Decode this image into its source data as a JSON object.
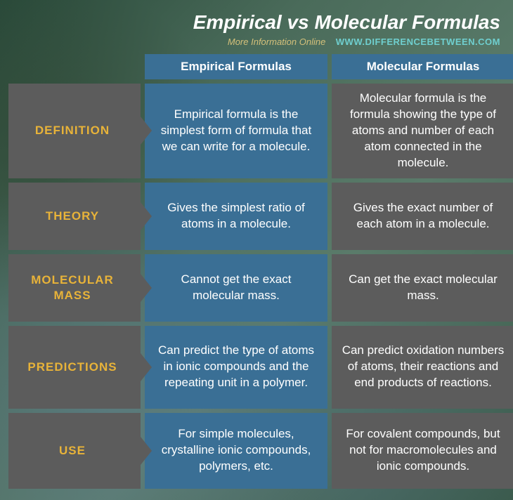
{
  "title": "Empirical vs Molecular Formulas",
  "subtitle": {
    "more": "More Information  Online",
    "url": "WWW.DIFFERENCEBETWEEN.COM"
  },
  "headers": {
    "empirical": "Empirical Formulas",
    "molecular": "Molecular Formulas"
  },
  "rows": [
    {
      "label": "DEFINITION",
      "empirical": "Empirical formula is the simplest form of formula that we can write for a molecule.",
      "molecular": "Molecular formula is the formula showing the type of atoms and number of each atom connected in the molecule."
    },
    {
      "label": "THEORY",
      "empirical": "Gives the simplest ratio of atoms in a molecule.",
      "molecular": "Gives the exact number of each atom in a molecule."
    },
    {
      "label": "MOLECULAR MASS",
      "empirical": "Cannot get the exact molecular mass.",
      "molecular": "Can get the exact molecular mass."
    },
    {
      "label": "PREDICTIONS",
      "empirical": "Can predict the type of atoms in ionic compounds and the repeating unit in a polymer.",
      "molecular": "Can predict oxidation numbers of atoms, their reactions and end products of reactions."
    },
    {
      "label": "USE",
      "empirical": "For simple molecules, crystalline ionic compounds, polymers, etc.",
      "molecular": "For covalent compounds, but not for macromolecules and ionic compounds."
    }
  ],
  "colors": {
    "empirical_bg": "#3a6f95",
    "molecular_bg": "#5c5c5c",
    "label_text": "#e8b339",
    "url_text": "#6fcfcf"
  }
}
